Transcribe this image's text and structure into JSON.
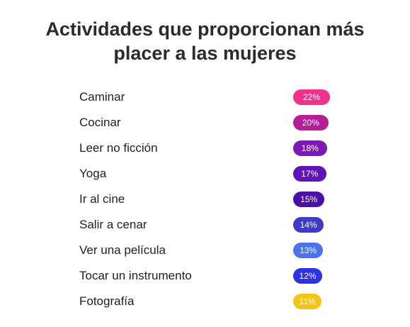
{
  "chart_data": {
    "type": "bar",
    "title": "Actividades que proporcionan más placer a las mujeres",
    "title_lines": [
      "Actividades que proporcionan más",
      "placer a las mujeres"
    ],
    "categories": [
      "Caminar",
      "Cocinar",
      "Leer no ficción",
      "Yoga",
      "Ir al cine",
      "Salir a cenar",
      "Ver una película",
      "Tocar un instrumento",
      "Fotografía"
    ],
    "values": [
      22,
      20,
      18,
      17,
      15,
      14,
      13,
      12,
      11
    ],
    "value_labels": [
      "22%",
      "20%",
      "18%",
      "17%",
      "15%",
      "14%",
      "13%",
      "12%",
      "11%"
    ],
    "colors": [
      "#f0328c",
      "#b41e96",
      "#7d19b4",
      "#5f14b9",
      "#4b0fa5",
      "#3c3cc8",
      "#4b73f0",
      "#2d32e6",
      "#f5c314"
    ],
    "unit": "%"
  }
}
